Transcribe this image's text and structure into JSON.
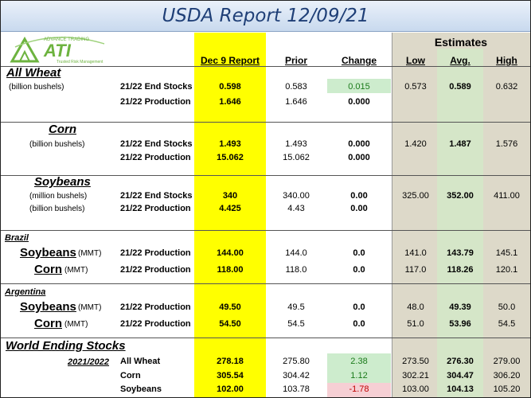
{
  "title": "USDA Report 12/09/21",
  "logo": {
    "text": "ATI",
    "tagline": "Trusted Risk Management",
    "arc_text": "ADVANCE TRADING"
  },
  "headers": {
    "estimates": "Estimates",
    "report": "Dec 9 Report",
    "prior": "Prior",
    "change": "Change",
    "low": "Low",
    "avg": "Avg.",
    "high": "High"
  },
  "wheat": {
    "name": "All Wheat",
    "unit": "(billion bushels)",
    "rows": [
      {
        "label": "21/22 End Stocks",
        "report": "0.598",
        "prior": "0.583",
        "change": "0.015",
        "low": "0.573",
        "avg": "0.589",
        "high": "0.632"
      },
      {
        "label": "21/22 Production",
        "report": "1.646",
        "prior": "1.646",
        "change": "0.000",
        "low": "",
        "avg": "",
        "high": ""
      }
    ]
  },
  "corn": {
    "name": "Corn",
    "unit": "(billion bushels)",
    "rows": [
      {
        "label": "21/22 End Stocks",
        "report": "1.493",
        "prior": "1.493",
        "change": "0.000",
        "low": "1.420",
        "avg": "1.487",
        "high": "1.576"
      },
      {
        "label": "21/22 Production",
        "report": "15.062",
        "prior": "15.062",
        "change": "0.000",
        "low": "",
        "avg": "",
        "high": ""
      }
    ]
  },
  "soybeans": {
    "name": "Soybeans",
    "unit1": "(million bushels)",
    "unit2": "(billion bushels)",
    "rows": [
      {
        "label": "21/22 End Stocks",
        "report": "340",
        "prior": "340.00",
        "change": "0.00",
        "low": "325.00",
        "avg": "352.00",
        "high": "411.00"
      },
      {
        "label": "21/22 Production",
        "report": "4.425",
        "prior": "4.43",
        "change": "0.00",
        "low": "",
        "avg": "",
        "high": ""
      }
    ]
  },
  "brazil": {
    "name": "Brazil",
    "rows": [
      {
        "crop": "Soybeans",
        "unit": "(MMT)",
        "label": "21/22 Production",
        "report": "144.00",
        "prior": "144.0",
        "change": "0.0",
        "low": "141.0",
        "avg": "143.79",
        "high": "145.1"
      },
      {
        "crop": "Corn",
        "unit": "(MMT)",
        "label": "21/22 Production",
        "report": "118.00",
        "prior": "118.0",
        "change": "0.0",
        "low": "117.0",
        "avg": "118.26",
        "high": "120.1"
      }
    ]
  },
  "argentina": {
    "name": "Argentina",
    "rows": [
      {
        "crop": "Soybeans",
        "unit": "(MMT)",
        "label": "21/22 Production",
        "report": "49.50",
        "prior": "49.5",
        "change": "0.0",
        "low": "48.0",
        "avg": "49.39",
        "high": "50.0"
      },
      {
        "crop": "Corn",
        "unit": "(MMT)",
        "label": "21/22 Production",
        "report": "54.50",
        "prior": "54.5",
        "change": "0.0",
        "low": "51.0",
        "avg": "53.96",
        "high": "54.5"
      }
    ]
  },
  "world": {
    "name": "World Ending Stocks",
    "year": "2021/2022",
    "rows": [
      {
        "label": "All Wheat",
        "report": "278.18",
        "prior": "275.80",
        "change": "2.38",
        "low": "273.50",
        "avg": "276.30",
        "high": "279.00"
      },
      {
        "label": "Corn",
        "report": "305.54",
        "prior": "304.42",
        "change": "1.12",
        "low": "302.21",
        "avg": "304.47",
        "high": "306.20"
      },
      {
        "label": "Soybeans",
        "report": "102.00",
        "prior": "103.78",
        "change": "-1.78",
        "low": "103.00",
        "avg": "104.13",
        "high": "105.20"
      }
    ]
  },
  "colors": {
    "title": "#1f3f77",
    "highlight": "#ffff00",
    "estimates_bg": "#ddd9c9",
    "avg_bg": "#d5e6c8",
    "positive": "#cdeccd",
    "negative": "#f6cfd4",
    "negative_text": "#c00000",
    "logo": "#6db33f"
  }
}
